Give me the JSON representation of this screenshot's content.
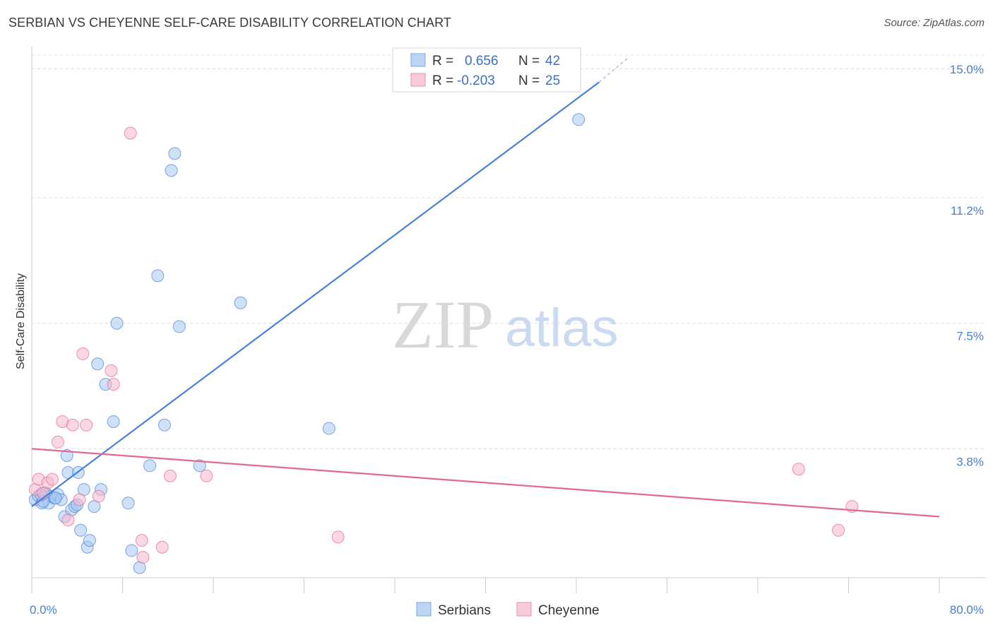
{
  "title": "SERBIAN VS CHEYENNE SELF-CARE DISABILITY CORRELATION CHART",
  "source": "Source: ZipAtlas.com",
  "watermark": {
    "zip": "ZIP",
    "atlas": "atlas"
  },
  "legend": {
    "rows": [
      {
        "r_label": "R =",
        "r_value": "0.656",
        "n_label": "N =",
        "n_value": "42",
        "color": "#a8c8f0"
      },
      {
        "r_label": "R =",
        "r_value": "-0.203",
        "n_label": "N =",
        "n_value": "25",
        "color": "#f5b8cc"
      }
    ]
  },
  "bottom_legend": [
    {
      "label": "Serbians",
      "color": "#a8c8f0"
    },
    {
      "label": "Cheyenne",
      "color": "#f5b8cc"
    }
  ],
  "chart_data": {
    "type": "scatter",
    "title": "SERBIAN VS CHEYENNE SELF-CARE DISABILITY CORRELATION CHART",
    "xlabel": "",
    "ylabel": "Self-Care Disability",
    "xlim": [
      0,
      80
    ],
    "ylim": [
      0,
      15.4
    ],
    "x_tick_labels": [
      "0.0%",
      "80.0%"
    ],
    "y_ticks": [
      3.8,
      7.5,
      11.2,
      15.0
    ],
    "y_tick_labels": [
      "3.8%",
      "7.5%",
      "11.2%",
      "15.0%"
    ],
    "series": [
      {
        "name": "Serbians",
        "color": "#4a80d8",
        "fill": "#a8c8f0",
        "trend": {
          "x": [
            0,
            50
          ],
          "y": [
            2.1,
            14.6
          ],
          "dash_to": [
            52.5,
            15.3
          ]
        },
        "points": [
          [
            0.3,
            2.3
          ],
          [
            0.6,
            2.4
          ],
          [
            0.9,
            2.2
          ],
          [
            1.2,
            2.5
          ],
          [
            1.5,
            2.2
          ],
          [
            1.7,
            2.4
          ],
          [
            2.0,
            2.35
          ],
          [
            2.3,
            2.45
          ],
          [
            2.6,
            2.3
          ],
          [
            2.9,
            1.8
          ],
          [
            3.1,
            3.6
          ],
          [
            3.2,
            3.1
          ],
          [
            3.5,
            2.0
          ],
          [
            3.8,
            2.1
          ],
          [
            4.1,
            3.1
          ],
          [
            4.3,
            1.4
          ],
          [
            4.6,
            2.6
          ],
          [
            4.9,
            0.9
          ],
          [
            5.1,
            1.1
          ],
          [
            5.5,
            2.1
          ],
          [
            5.8,
            6.3
          ],
          [
            6.1,
            2.6
          ],
          [
            6.5,
            5.7
          ],
          [
            7.2,
            4.6
          ],
          [
            7.5,
            7.5
          ],
          [
            8.5,
            2.2
          ],
          [
            8.8,
            0.8
          ],
          [
            9.5,
            0.3
          ],
          [
            10.4,
            3.3
          ],
          [
            11.1,
            8.9
          ],
          [
            11.7,
            4.5
          ],
          [
            12.3,
            12.0
          ],
          [
            12.6,
            12.5
          ],
          [
            13.0,
            7.4
          ],
          [
            14.8,
            3.3
          ],
          [
            18.4,
            8.1
          ],
          [
            26.2,
            4.4
          ],
          [
            48.2,
            13.5
          ],
          [
            2.1,
            2.35
          ],
          [
            1.0,
            2.25
          ],
          [
            4.0,
            2.15
          ],
          [
            0.8,
            2.45
          ]
        ]
      },
      {
        "name": "Cheyenne",
        "color": "#e26896",
        "fill": "#f5b8cc",
        "trend": {
          "x": [
            0,
            80
          ],
          "y": [
            3.8,
            1.8
          ]
        },
        "points": [
          [
            0.3,
            2.6
          ],
          [
            0.6,
            2.9
          ],
          [
            1.0,
            2.5
          ],
          [
            1.4,
            2.8
          ],
          [
            1.8,
            2.9
          ],
          [
            2.3,
            4.0
          ],
          [
            2.7,
            4.6
          ],
          [
            3.2,
            1.7
          ],
          [
            3.6,
            4.5
          ],
          [
            4.2,
            2.3
          ],
          [
            4.5,
            6.6
          ],
          [
            4.8,
            4.5
          ],
          [
            5.9,
            2.4
          ],
          [
            7.0,
            6.1
          ],
          [
            7.2,
            5.7
          ],
          [
            8.7,
            13.1
          ],
          [
            9.7,
            1.1
          ],
          [
            9.8,
            0.6
          ],
          [
            11.5,
            0.9
          ],
          [
            12.2,
            3.0
          ],
          [
            15.4,
            3.0
          ],
          [
            27.0,
            1.2
          ],
          [
            67.6,
            3.2
          ],
          [
            71.1,
            1.4
          ],
          [
            72.3,
            2.1
          ]
        ]
      }
    ]
  }
}
